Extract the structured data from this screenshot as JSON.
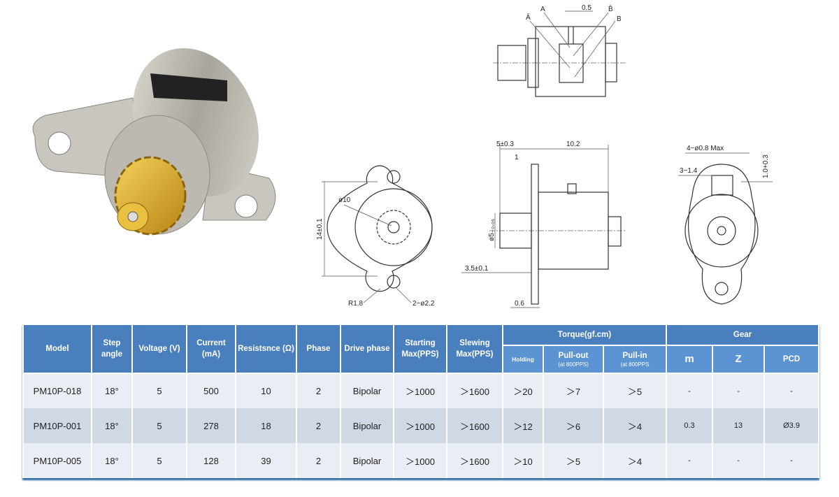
{
  "photo": {
    "subject": "micro stepper motor with brass pinion gear",
    "colors": {
      "metal": "#b8b4ac",
      "gear": "#d8a820"
    }
  },
  "drawings": {
    "top_view": {
      "dimension": "0.5",
      "leads": [
        "Ā",
        "A",
        "B̄",
        "B"
      ]
    },
    "front_view": {
      "height": "14±0.1",
      "diameter": "ø10",
      "radius": "R1.8",
      "holes": "2−ø2.2"
    },
    "side_view": {
      "length": "10.2",
      "shaft_protrusion": "5±0.3",
      "flange_offset": "1",
      "shaft_dia": "ø5₋₀.₀₅",
      "boss_dia": "ø5",
      "hub_length": "3.5±0.1",
      "flange_thickness": "0.6"
    },
    "rear_view": {
      "pins": "4−ø0.8 Max",
      "pitch": "3−1.4",
      "pin_height": "1.0+0.3"
    }
  },
  "table": {
    "headers": {
      "model": "Model",
      "step_angle": "Step angle",
      "voltage": "Voltage (V)",
      "current": "Current (mA)",
      "resistance": "Resistsnce (Ω)",
      "phase": "Phase",
      "drive_phase": "Drive phase",
      "starting": "Starting Max(PPS)",
      "slewing": "Slewing Max(PPS)",
      "torque": "Torque(gf.cm)",
      "holding": "Holding",
      "pull_out": "Pull-out",
      "pull_out_note": "(at 800PPS)",
      "pull_in": "Pull-in",
      "pull_in_note": "(at 800PPS",
      "gear": "Gear",
      "m": "m",
      "z": "Z",
      "pcd": "PCD"
    },
    "rows": [
      [
        "PM10P-018",
        "18°",
        "5",
        "500",
        "10",
        "2",
        "Bipolar",
        "＞1000",
        "＞1600",
        "＞20",
        "＞7",
        "＞5",
        "-",
        "-",
        "-"
      ],
      [
        "PM10P-001",
        "18°",
        "5",
        "278",
        "18",
        "2",
        "Bipolar",
        "＞1000",
        "＞1600",
        "＞12",
        "＞6",
        "＞4",
        "0.3",
        "13",
        "Ø3.9"
      ],
      [
        "PM10P-005",
        "18°",
        "5",
        "128",
        "39",
        "2",
        "Bipolar",
        "＞1000",
        "＞1600",
        "＞10",
        "＞5",
        "＞4",
        "-",
        "-",
        "-"
      ]
    ]
  }
}
